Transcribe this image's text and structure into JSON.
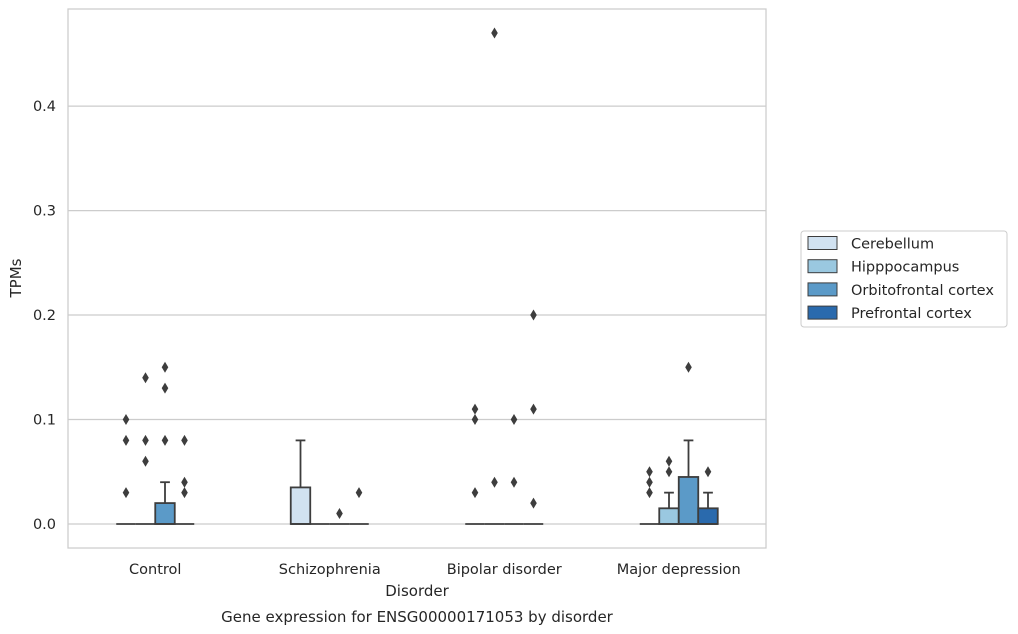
{
  "chart_data": {
    "type": "boxplot",
    "title": "",
    "caption": "Gene expression for ENSG00000171053 by disorder",
    "xlabel": "Disorder",
    "ylabel": "TPMs",
    "ylim": [
      -0.023,
      0.493
    ],
    "yticks": [
      0.0,
      0.1,
      0.2,
      0.3,
      0.4
    ],
    "ytick_labels": [
      "0.0",
      "0.1",
      "0.2",
      "0.3",
      "0.4"
    ],
    "grid": "horizontal",
    "legend_placement": "right-center",
    "categories": [
      "Control",
      "Schizophrenia",
      "Bipolar disorder",
      "Major depression"
    ],
    "series": [
      {
        "name": "Cerebellum",
        "color": "#d1e2f1",
        "boxes": [
          {
            "q1": 0,
            "median": 0,
            "q3": 0,
            "whisker_low": 0,
            "whisker_high": 0,
            "outliers": [
              0.03,
              0.08,
              0.1
            ]
          },
          {
            "q1": 0,
            "median": 0,
            "q3": 0.035,
            "whisker_low": 0,
            "whisker_high": 0.08,
            "outliers": []
          },
          {
            "q1": 0,
            "median": 0,
            "q3": 0,
            "whisker_low": 0,
            "whisker_high": 0,
            "outliers": [
              0.03,
              0.1,
              0.11
            ]
          },
          {
            "q1": 0,
            "median": 0,
            "q3": 0,
            "whisker_low": 0,
            "whisker_high": 0,
            "outliers": [
              0.03,
              0.04,
              0.05
            ]
          }
        ]
      },
      {
        "name": "Hipppocampus",
        "color": "#9ac8e0",
        "boxes": [
          {
            "q1": 0,
            "median": 0,
            "q3": 0,
            "whisker_low": 0,
            "whisker_high": 0,
            "outliers": [
              0.06,
              0.08,
              0.14
            ]
          },
          {
            "q1": 0,
            "median": 0,
            "q3": 0,
            "whisker_low": 0,
            "whisker_high": 0,
            "outliers": []
          },
          {
            "q1": 0,
            "median": 0,
            "q3": 0,
            "whisker_low": 0,
            "whisker_high": 0,
            "outliers": [
              0.04,
              0.47
            ]
          },
          {
            "q1": 0,
            "median": 0,
            "q3": 0.015,
            "whisker_low": 0,
            "whisker_high": 0.03,
            "outliers": [
              0.05,
              0.06
            ]
          }
        ]
      },
      {
        "name": "Orbitofrontal cortex",
        "color": "#5b9ac8",
        "boxes": [
          {
            "q1": 0,
            "median": 0,
            "q3": 0.02,
            "whisker_low": 0,
            "whisker_high": 0.04,
            "outliers": [
              0.08,
              0.13,
              0.15
            ]
          },
          {
            "q1": 0,
            "median": 0,
            "q3": 0,
            "whisker_low": 0,
            "whisker_high": 0,
            "outliers": [
              0.01
            ]
          },
          {
            "q1": 0,
            "median": 0,
            "q3": 0,
            "whisker_low": 0,
            "whisker_high": 0,
            "outliers": [
              0.04,
              0.1
            ]
          },
          {
            "q1": 0,
            "median": 0,
            "q3": 0.045,
            "whisker_low": 0,
            "whisker_high": 0.08,
            "outliers": [
              0.15
            ]
          }
        ]
      },
      {
        "name": "Prefrontal cortex",
        "color": "#2a6aad",
        "boxes": [
          {
            "q1": 0,
            "median": 0,
            "q3": 0,
            "whisker_low": 0,
            "whisker_high": 0,
            "outliers": [
              0.03,
              0.04,
              0.08
            ]
          },
          {
            "q1": 0,
            "median": 0,
            "q3": 0,
            "whisker_low": 0,
            "whisker_high": 0,
            "outliers": [
              0.03
            ]
          },
          {
            "q1": 0,
            "median": 0,
            "q3": 0,
            "whisker_low": 0,
            "whisker_high": 0,
            "outliers": [
              0.02,
              0.11,
              0.2
            ]
          },
          {
            "q1": 0,
            "median": 0,
            "q3": 0.015,
            "whisker_low": 0,
            "whisker_high": 0.03,
            "outliers": [
              0.05
            ]
          }
        ]
      }
    ]
  }
}
